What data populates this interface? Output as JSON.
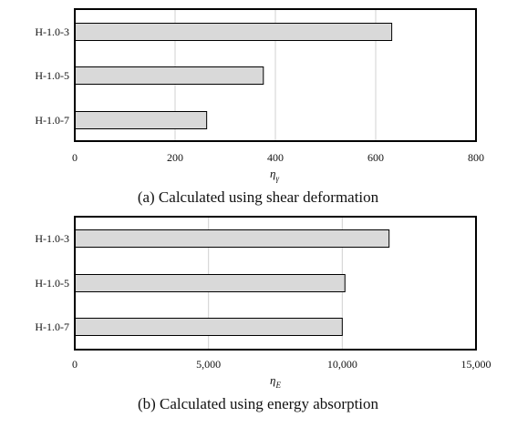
{
  "colors": {
    "bar_fill": "#d9d9d9",
    "bar_stroke": "#000000",
    "grid": "#d0d0d0",
    "frame": "#000000"
  },
  "chart_data": [
    {
      "type": "bar",
      "orientation": "horizontal",
      "caption": "(a) Calculated using shear deformation",
      "xlabel": "η",
      "xlabel_subscript": "γ",
      "categories": [
        "H-1.0-3",
        "H-1.0-5",
        "H-1.0-7"
      ],
      "values": [
        632,
        376,
        263
      ],
      "xlim": [
        0,
        800
      ],
      "xticks": [
        0,
        200,
        400,
        600,
        800
      ],
      "xtick_labels": [
        "0",
        "200",
        "400",
        "600",
        "800"
      ],
      "grid": "vertical"
    },
    {
      "type": "bar",
      "orientation": "horizontal",
      "caption": "(b) Calculated using energy absorption",
      "xlabel": "η",
      "xlabel_subscript": "E",
      "categories": [
        "H-1.0-3",
        "H-1.0-5",
        "H-1.0-7"
      ],
      "values": [
        11750,
        10100,
        10000
      ],
      "xlim": [
        0,
        15000
      ],
      "xticks": [
        0,
        5000,
        10000,
        15000
      ],
      "xtick_labels": [
        "0",
        "5,000",
        "10,000",
        "15,000"
      ],
      "grid": "vertical"
    }
  ]
}
